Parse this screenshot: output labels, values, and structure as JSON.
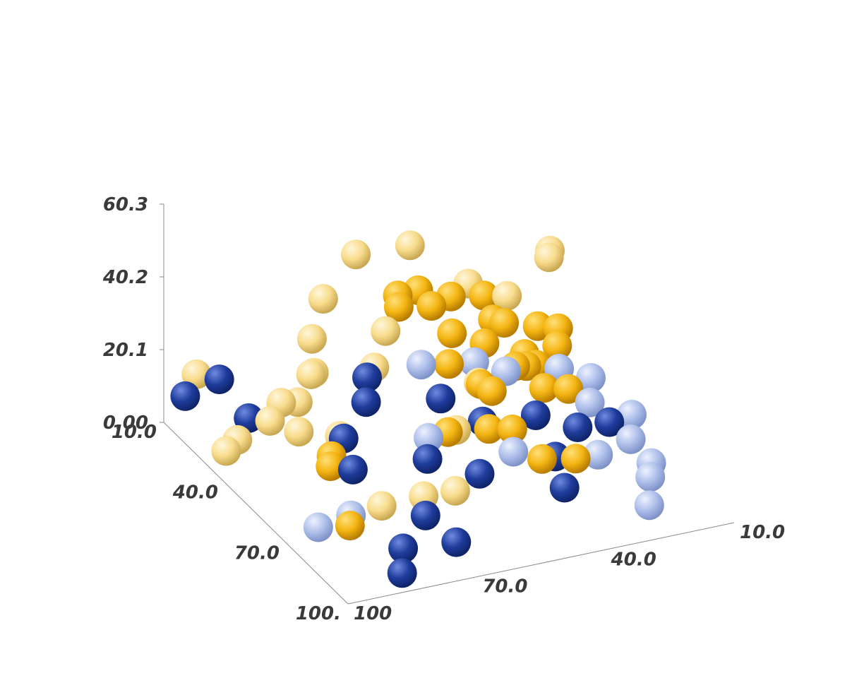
{
  "chart_data": {
    "type": "scatter",
    "title": "",
    "xlabel": "",
    "ylabel": "",
    "zlabel": "",
    "x_range": [
      10,
      100
    ],
    "y_range": [
      10,
      100
    ],
    "z_range": [
      0,
      60.3
    ],
    "z_ticks": [
      "0.00",
      "20.1",
      "40.2",
      "60.3"
    ],
    "x_ticks": [
      {
        "value": 10,
        "label": "10.0"
      },
      {
        "value": 40,
        "label": "40.0"
      },
      {
        "value": 70,
        "label": "70.0"
      },
      {
        "value": 100,
        "label": "100."
      }
    ],
    "y_ticks": [
      {
        "value": 10,
        "label": "10.0"
      },
      {
        "value": 40,
        "label": "40.0"
      },
      {
        "value": 70,
        "label": "70.0"
      },
      {
        "value": 100,
        "label": "100"
      }
    ],
    "grid": false,
    "legend": "none",
    "colors": {
      "dark_blue": "#1f3c9c",
      "light_blue": "#aebfea",
      "gold": "#f4b512",
      "pale_yellow": "#f8dc8c"
    },
    "series": [
      {
        "color": "dark_blue",
        "points": [
          [
            15,
            55,
            4
          ],
          [
            25,
            60,
            4
          ],
          [
            30,
            45,
            4
          ],
          [
            40,
            40,
            2
          ],
          [
            45,
            30,
            4
          ],
          [
            55,
            25,
            5
          ],
          [
            60,
            20,
            8
          ],
          [
            35,
            70,
            2
          ],
          [
            65,
            35,
            5
          ],
          [
            70,
            55,
            8
          ],
          [
            75,
            70,
            3
          ],
          [
            85,
            80,
            2
          ],
          [
            90,
            70,
            4
          ],
          [
            80,
            40,
            6
          ],
          [
            95,
            85,
            2
          ],
          [
            50,
            75,
            3
          ],
          [
            55,
            60,
            5
          ],
          [
            20,
            85,
            3
          ],
          [
            10,
            95,
            6
          ],
          [
            12,
            88,
            10
          ]
        ]
      },
      {
        "color": "light_blue",
        "points": [
          [
            10,
            40,
            1
          ],
          [
            15,
            30,
            2
          ],
          [
            20,
            25,
            1
          ],
          [
            25,
            15,
            2
          ],
          [
            30,
            10,
            1
          ],
          [
            40,
            15,
            1
          ],
          [
            50,
            10,
            2
          ],
          [
            60,
            15,
            2
          ],
          [
            65,
            25,
            3
          ],
          [
            70,
            15,
            1
          ],
          [
            80,
            20,
            4
          ],
          [
            90,
            25,
            3
          ],
          [
            55,
            40,
            2
          ],
          [
            45,
            55,
            4
          ],
          [
            70,
            85,
            4
          ],
          [
            75,
            95,
            6
          ]
        ]
      },
      {
        "color": "gold",
        "points": [
          [
            40,
            55,
            42
          ],
          [
            35,
            45,
            35
          ],
          [
            30,
            35,
            30
          ],
          [
            40,
            35,
            28
          ],
          [
            45,
            40,
            33
          ],
          [
            50,
            35,
            25
          ],
          [
            25,
            40,
            18
          ],
          [
            20,
            30,
            10
          ],
          [
            30,
            25,
            8
          ],
          [
            35,
            30,
            12
          ],
          [
            45,
            25,
            22
          ],
          [
            55,
            45,
            20
          ],
          [
            60,
            50,
            26
          ],
          [
            65,
            45,
            15
          ],
          [
            70,
            40,
            28
          ],
          [
            75,
            35,
            10
          ],
          [
            25,
            20,
            15
          ],
          [
            35,
            20,
            20
          ],
          [
            85,
            60,
            30
          ],
          [
            90,
            50,
            22
          ],
          [
            20,
            50,
            25
          ],
          [
            15,
            40,
            20
          ],
          [
            55,
            55,
            30
          ],
          [
            45,
            30,
            18
          ],
          [
            40,
            20,
            6
          ],
          [
            80,
            90,
            8
          ],
          [
            60,
            85,
            12
          ],
          [
            50,
            80,
            8
          ],
          [
            65,
            60,
            18
          ],
          [
            30,
            55,
            35
          ]
        ]
      },
      {
        "color": "pale_yellow",
        "points": [
          [
            10,
            20,
            15
          ],
          [
            12,
            30,
            22
          ],
          [
            15,
            45,
            38
          ],
          [
            20,
            60,
            42
          ],
          [
            25,
            70,
            35
          ],
          [
            30,
            75,
            28
          ],
          [
            40,
            80,
            25
          ],
          [
            55,
            90,
            20
          ],
          [
            65,
            95,
            35
          ],
          [
            75,
            90,
            30
          ],
          [
            85,
            85,
            15
          ],
          [
            95,
            80,
            22
          ],
          [
            100,
            75,
            25
          ],
          [
            90,
            70,
            35
          ],
          [
            80,
            60,
            40
          ],
          [
            10,
            65,
            5
          ],
          [
            15,
            75,
            2
          ],
          [
            20,
            80,
            1
          ],
          [
            25,
            90,
            1
          ],
          [
            30,
            95,
            2
          ],
          [
            10,
            10,
            25
          ],
          [
            20,
            15,
            30
          ],
          [
            50,
            70,
            30
          ],
          [
            45,
            65,
            36
          ],
          [
            5,
            90,
            8
          ]
        ]
      }
    ]
  }
}
